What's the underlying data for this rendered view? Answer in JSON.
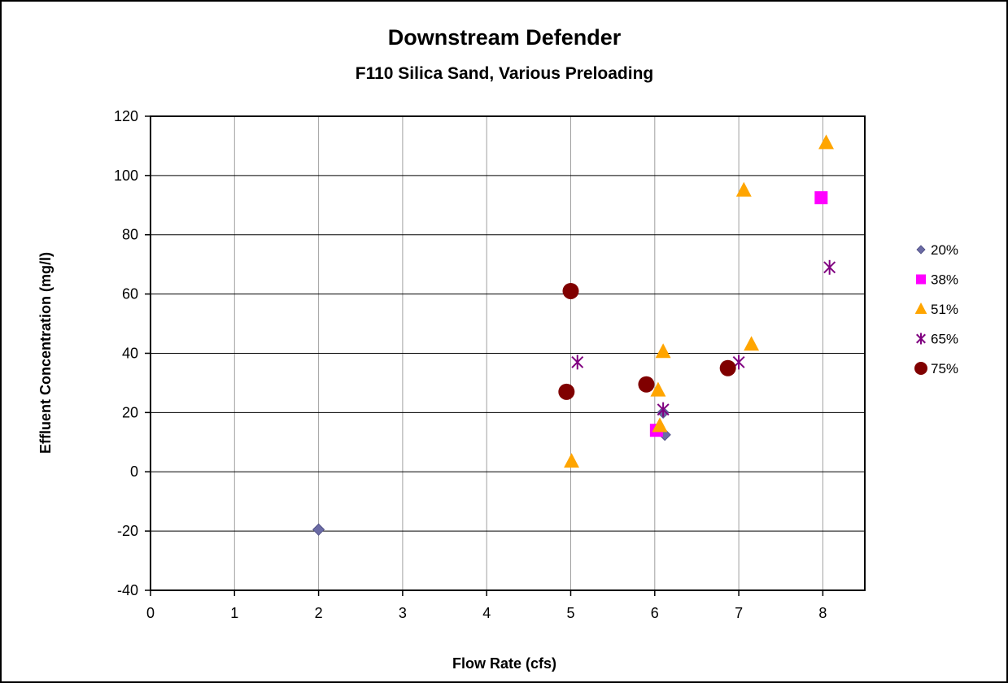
{
  "chart_data": {
    "type": "scatter",
    "title": "Downstream Defender",
    "subtitle": "F110 Silica Sand, Various Preloading",
    "xlabel": "Flow Rate (cfs)",
    "ylabel": "Effluent Concentration (mg/l)",
    "xlim": [
      0,
      8.5
    ],
    "ylim": [
      -40,
      120
    ],
    "x_ticks": [
      0,
      1,
      2,
      3,
      4,
      5,
      6,
      7,
      8
    ],
    "y_ticks": [
      -40,
      -20,
      0,
      20,
      40,
      60,
      80,
      100,
      120
    ],
    "grid": true,
    "legend_position": "right",
    "series": [
      {
        "name": "20%",
        "marker": "diamond",
        "color": "#6B6BA5",
        "points": [
          [
            2.0,
            -19.5
          ],
          [
            6.1,
            20.0
          ],
          [
            6.12,
            12.5
          ]
        ]
      },
      {
        "name": "38%",
        "marker": "square",
        "color": "#FF00FF",
        "points": [
          [
            6.02,
            14.0
          ],
          [
            7.98,
            92.5
          ]
        ]
      },
      {
        "name": "51%",
        "marker": "triangle",
        "color": "#FFA500",
        "points": [
          [
            5.01,
            3.5
          ],
          [
            6.04,
            27.5
          ],
          [
            6.06,
            15.5
          ],
          [
            6.1,
            40.5
          ],
          [
            7.06,
            95.0
          ],
          [
            7.15,
            43.0
          ],
          [
            8.04,
            111.0
          ]
        ]
      },
      {
        "name": "65%",
        "marker": "asterisk",
        "color": "#800080",
        "points": [
          [
            5.08,
            37.0
          ],
          [
            6.1,
            21.0
          ],
          [
            7.0,
            37.0
          ],
          [
            8.08,
            69.0
          ]
        ]
      },
      {
        "name": "75%",
        "marker": "circle",
        "color": "#800000",
        "points": [
          [
            4.95,
            27.0
          ],
          [
            5.0,
            61.0
          ],
          [
            5.9,
            29.5
          ],
          [
            6.87,
            35.0
          ]
        ]
      }
    ]
  }
}
